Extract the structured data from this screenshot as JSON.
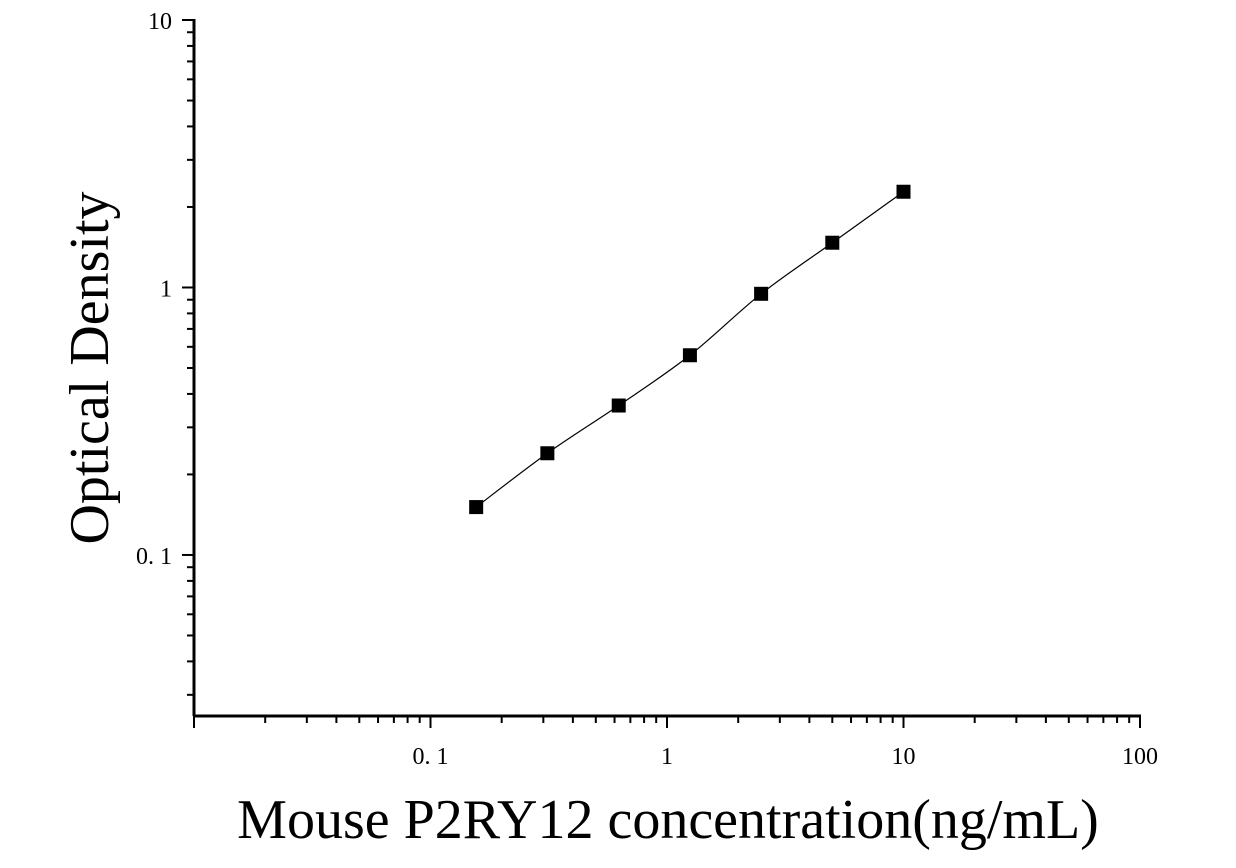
{
  "chart_data": {
    "type": "scatter",
    "xlabel": "Mouse P2RY12 concentration(ng/mL)",
    "ylabel": "Optical Density",
    "x_scale": "log",
    "y_scale": "log",
    "xlim": [
      0.01,
      100
    ],
    "ylim": [
      0.025,
      10
    ],
    "x_tick_labels": [
      {
        "value": 0.1,
        "label": "0. 1"
      },
      {
        "value": 1,
        "label": "1"
      },
      {
        "value": 10,
        "label": "10"
      },
      {
        "value": 100,
        "label": "100"
      }
    ],
    "y_tick_labels": [
      {
        "value": 0.1,
        "label": "0. 1"
      },
      {
        "value": 1,
        "label": "1"
      },
      {
        "value": 10,
        "label": "10"
      }
    ],
    "grid": false,
    "legend": false,
    "series": [
      {
        "marker": "square",
        "color": "#000000",
        "fit_line": true,
        "points": [
          {
            "x": 0.156,
            "y": 0.151
          },
          {
            "x": 0.312,
            "y": 0.24
          },
          {
            "x": 0.625,
            "y": 0.362
          },
          {
            "x": 1.25,
            "y": 0.558
          },
          {
            "x": 2.5,
            "y": 0.947
          },
          {
            "x": 5,
            "y": 1.47
          },
          {
            "x": 10,
            "y": 2.28
          }
        ]
      }
    ]
  }
}
